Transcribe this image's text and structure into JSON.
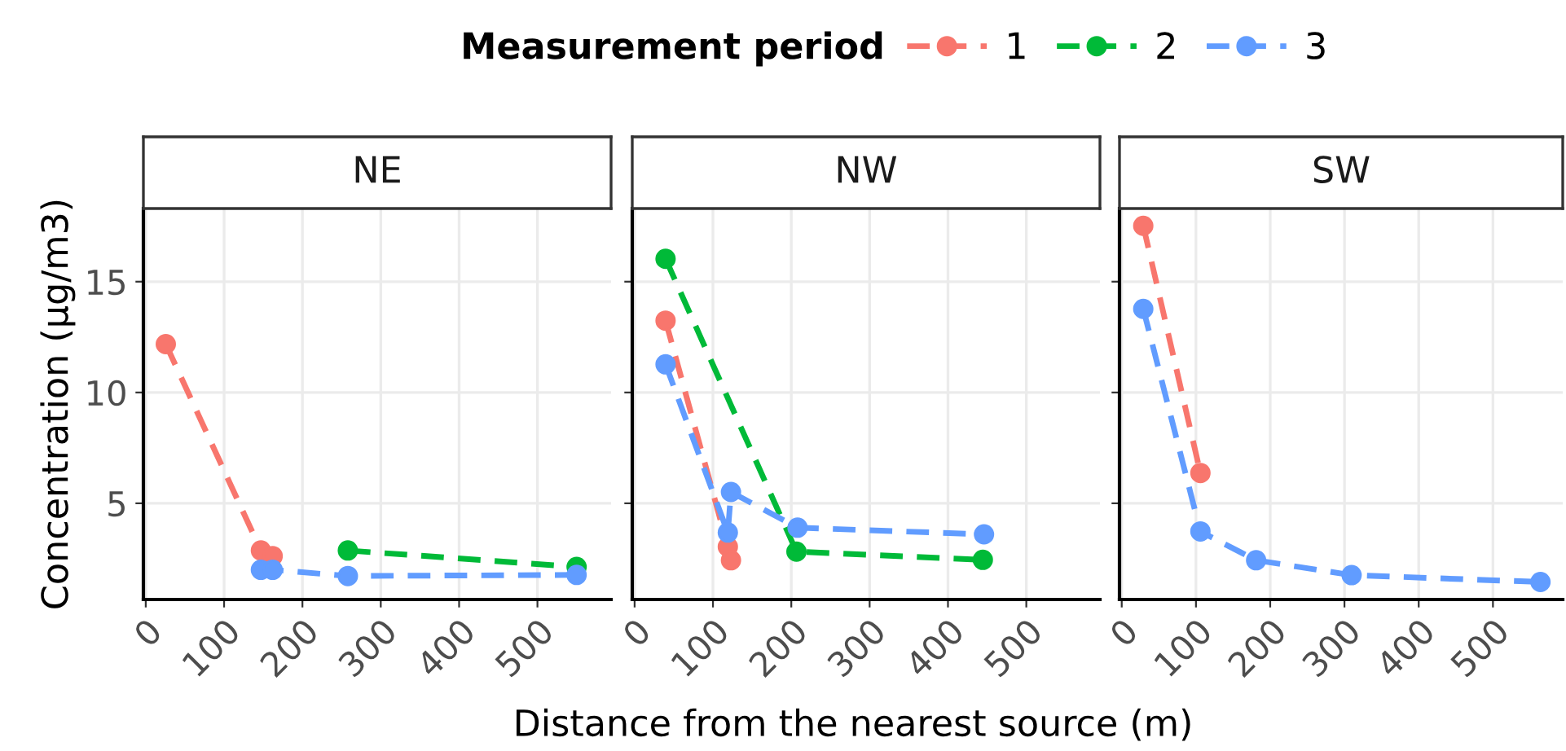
{
  "chart_data": [
    {
      "type": "line",
      "title": "NE",
      "ylabel": "Concentration (µg/m3)",
      "legend_title": "Measurement period",
      "legend": "top",
      "xlim": [
        -3,
        594
      ],
      "ylim": [
        0.66,
        18.3
      ],
      "xticks": [
        0,
        100,
        200,
        300,
        400,
        500
      ],
      "yticks": [
        5,
        10,
        15
      ],
      "grid": true,
      "marker": "circle",
      "line_style": "dashed",
      "series": [
        {
          "name": "1",
          "color": "#f8766d",
          "x": [
            25.6,
            147,
            162
          ],
          "values": [
            12.18,
            2.87,
            2.62
          ]
        },
        {
          "name": "2",
          "color": "#00ba38",
          "x": [
            258,
            550
          ],
          "values": [
            2.87,
            2.13
          ]
        },
        {
          "name": "3",
          "color": "#619cff",
          "x": [
            147,
            162,
            258,
            550
          ],
          "values": [
            2.0,
            2.0,
            1.72,
            1.77
          ]
        }
      ]
    },
    {
      "type": "line",
      "title": "NW",
      "xlabel": "Distance from the nearest source (m)",
      "xlim": [
        -3,
        594
      ],
      "ylim": [
        0.66,
        18.3
      ],
      "xticks": [
        0,
        100,
        200,
        300,
        400,
        500
      ],
      "yticks": [
        5,
        10,
        15
      ],
      "tick_labels": "x",
      "grid": true,
      "marker": "circle",
      "line_style": "dashed",
      "series": [
        {
          "name": "1",
          "color": "#f8766d",
          "x": [
            39.5,
            119,
            123
          ],
          "values": [
            13.24,
            3.04,
            2.43
          ]
        },
        {
          "name": "2",
          "color": "#00ba38",
          "x": [
            39.5,
            206.6,
            444.5
          ],
          "values": [
            16.03,
            2.82,
            2.45
          ]
        },
        {
          "name": "3",
          "color": "#619cff",
          "x": [
            39.5,
            119,
            123,
            208,
            446
          ],
          "values": [
            11.27,
            3.68,
            5.51,
            3.9,
            3.6
          ]
        }
      ]
    },
    {
      "type": "line",
      "title": "SW",
      "xlim": [
        -3,
        594
      ],
      "ylim": [
        0.66,
        18.3
      ],
      "xticks": [
        0,
        100,
        200,
        300,
        400,
        500
      ],
      "yticks": [
        5,
        10,
        15
      ],
      "tick_labels": "x",
      "grid": true,
      "marker": "circle",
      "line_style": "dashed",
      "series": [
        {
          "name": "1",
          "color": "#f8766d",
          "x": [
            29,
            106
          ],
          "values": [
            17.52,
            6.37
          ]
        },
        {
          "name": "3",
          "color": "#619cff",
          "x": [
            29,
            106,
            181,
            309.6,
            564
          ],
          "values": [
            13.77,
            3.73,
            2.43,
            1.76,
            1.45
          ]
        }
      ]
    }
  ]
}
